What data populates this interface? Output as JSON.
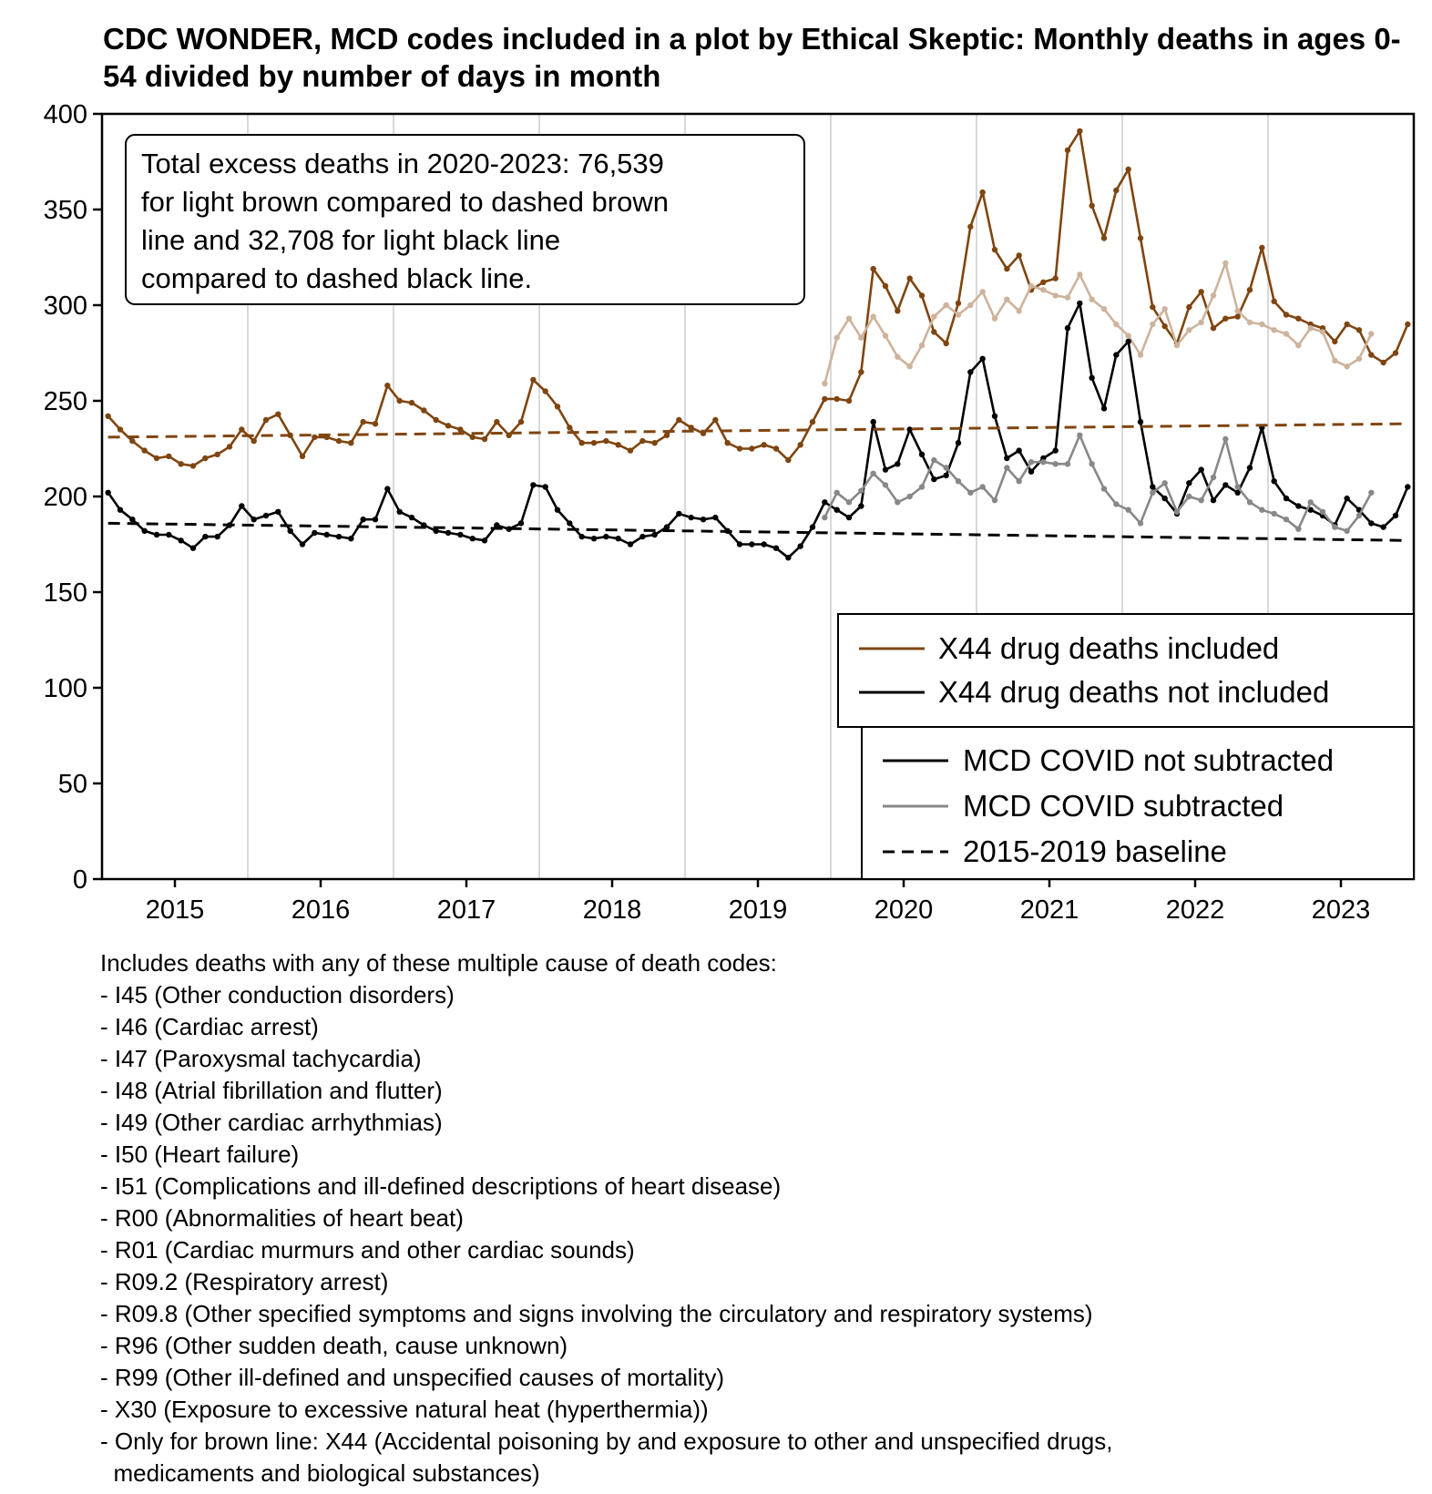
{
  "chart_data": {
    "type": "line",
    "title": "CDC WONDER, MCD codes included in a plot by Ethical Skeptic: Monthly deaths in ages 0-54 divided by number of days in month",
    "xlabel": "",
    "ylabel": "",
    "ylim": [
      0,
      400
    ],
    "yticks": [
      "0",
      "50",
      "100",
      "150",
      "200",
      "250",
      "300",
      "350",
      "400"
    ],
    "xticks": [
      "2015",
      "2016",
      "2017",
      "2018",
      "2019",
      "2020",
      "2021",
      "2022",
      "2023"
    ],
    "x_start": "2015-01",
    "x_end": "2023-12",
    "grid": "vertical lines at year boundaries",
    "annotation": "Total excess deaths in 2020-2023: 76,539 for light brown compared to dashed brown line and 32,708 for light black line compared to dashed black line.",
    "annotation_lines": [
      "Total excess deaths in 2020-2023: 76,539",
      "for light brown compared to dashed brown",
      "line and 32,708 for light black line",
      "compared to dashed black line."
    ],
    "series": [
      {
        "name": "X44 drug deaths included (COVID not subtracted)",
        "color": "#7f4510",
        "start": "2015-01",
        "values": [
          242,
          235,
          229,
          224,
          220,
          221,
          217,
          216,
          220,
          222,
          226,
          235,
          229,
          240,
          243,
          232,
          221,
          231,
          231,
          229,
          228,
          239,
          238,
          258,
          250,
          249,
          245,
          240,
          237,
          235,
          231,
          230,
          239,
          232,
          239,
          261,
          255,
          247,
          236,
          228,
          228,
          229,
          227,
          224,
          229,
          228,
          232,
          240,
          236,
          233,
          240,
          228,
          225,
          225,
          227,
          225,
          219,
          227,
          239,
          251,
          251,
          250,
          265,
          319,
          310,
          297,
          314,
          305,
          286,
          280,
          301,
          341,
          359,
          329,
          319,
          326,
          308,
          312,
          314,
          381,
          391,
          352,
          335,
          360,
          371,
          335,
          299,
          289,
          280,
          299,
          307,
          288,
          293,
          294,
          308,
          330,
          302,
          295,
          293,
          290,
          288,
          281,
          290,
          287,
          274,
          270,
          275,
          290
        ]
      },
      {
        "name": "X44 drug deaths included (COVID subtracted)",
        "color": "#cdb39c",
        "start": "2019-12",
        "values": [
          259,
          283,
          293,
          283,
          294,
          284,
          273,
          268,
          279,
          294,
          300,
          295,
          300,
          307,
          293,
          303,
          297,
          310,
          308,
          305,
          304,
          316,
          303,
          298,
          290,
          284,
          274,
          290,
          298,
          279,
          287,
          291,
          305,
          322,
          297,
          291,
          290,
          287,
          285,
          279,
          288,
          286,
          271,
          268,
          272,
          285
        ]
      },
      {
        "name": "X44 drug deaths not included (COVID not subtracted)",
        "color": "#000000",
        "start": "2015-01",
        "values": [
          202,
          193,
          188,
          182,
          180,
          180,
          177,
          173,
          179,
          179,
          185,
          195,
          188,
          190,
          192,
          182,
          175,
          181,
          180,
          179,
          178,
          188,
          188,
          204,
          192,
          189,
          185,
          182,
          181,
          180,
          178,
          177,
          185,
          183,
          186,
          206,
          205,
          193,
          186,
          179,
          178,
          179,
          178,
          175,
          179,
          180,
          184,
          191,
          189,
          188,
          189,
          182,
          175,
          175,
          175,
          173,
          168,
          174,
          184,
          197,
          193,
          189,
          195,
          239,
          214,
          217,
          235,
          222,
          209,
          211,
          228,
          265,
          272,
          242,
          220,
          224,
          213,
          220,
          224,
          288,
          301,
          262,
          246,
          274,
          281,
          239,
          205,
          199,
          191,
          207,
          214,
          198,
          206,
          202,
          215,
          236,
          208,
          199,
          195,
          193,
          190,
          185,
          199,
          193,
          186,
          184,
          190,
          205
        ]
      },
      {
        "name": "X44 drug deaths not included (COVID subtracted)",
        "color": "#888888",
        "start": "2019-12",
        "values": [
          189,
          202,
          197,
          203,
          212,
          206,
          197,
          200,
          205,
          219,
          215,
          208,
          202,
          205,
          198,
          215,
          208,
          218,
          218,
          217,
          217,
          232,
          217,
          204,
          196,
          193,
          186,
          202,
          207,
          192,
          200,
          198,
          210,
          230,
          205,
          197,
          193,
          191,
          188,
          183,
          197,
          192,
          184,
          182,
          190,
          202
        ]
      },
      {
        "name": "2015-2019 baseline (drug deaths included)",
        "color": "#7f4510",
        "dashed": true,
        "from": 231,
        "to": 238
      },
      {
        "name": "2015-2019 baseline (drug deaths not included)",
        "color": "#000000",
        "dashed": true,
        "from": 186,
        "to": 177
      }
    ],
    "legend_top": {
      "position": "lower-right",
      "entries": [
        {
          "label": "X44 drug deaths included",
          "color": "#7f4510"
        },
        {
          "label": "X44 drug deaths not included",
          "color": "#000000"
        }
      ]
    },
    "legend_bottom": {
      "position": "bottom-right",
      "entries": [
        {
          "label": "MCD COVID not subtracted",
          "color": "#000000"
        },
        {
          "label": "MCD COVID subtracted",
          "color": "#888888"
        },
        {
          "label": "2015-2019 baseline",
          "color": "#000000",
          "dashed": true
        }
      ]
    }
  },
  "footnote": {
    "lines": [
      "Includes deaths with any of these multiple cause of death codes:",
      "- I45 (Other conduction disorders)",
      "- I46 (Cardiac arrest)",
      "- I47 (Paroxysmal tachycardia)",
      "- I48 (Atrial fibrillation and flutter)",
      "- I49 (Other cardiac arrhythmias)",
      "- I50 (Heart failure)",
      "- I51 (Complications and ill-defined descriptions of heart disease)",
      "- R00 (Abnormalities of heart beat)",
      "- R01 (Cardiac murmurs and other cardiac sounds)",
      "- R09.2 (Respiratory arrest)",
      "- R09.8 (Other specified symptoms and signs involving the circulatory and respiratory systems)",
      "- R96 (Other sudden death, cause unknown)",
      "- R99 (Other ill-defined and unspecified causes of mortality)",
      "- X30 (Exposure to excessive natural heat (hyperthermia))",
      "- Only for brown line: X44 (Accidental poisoning by and exposure to other and unspecified drugs,",
      "  medicaments and biological substances)"
    ]
  }
}
